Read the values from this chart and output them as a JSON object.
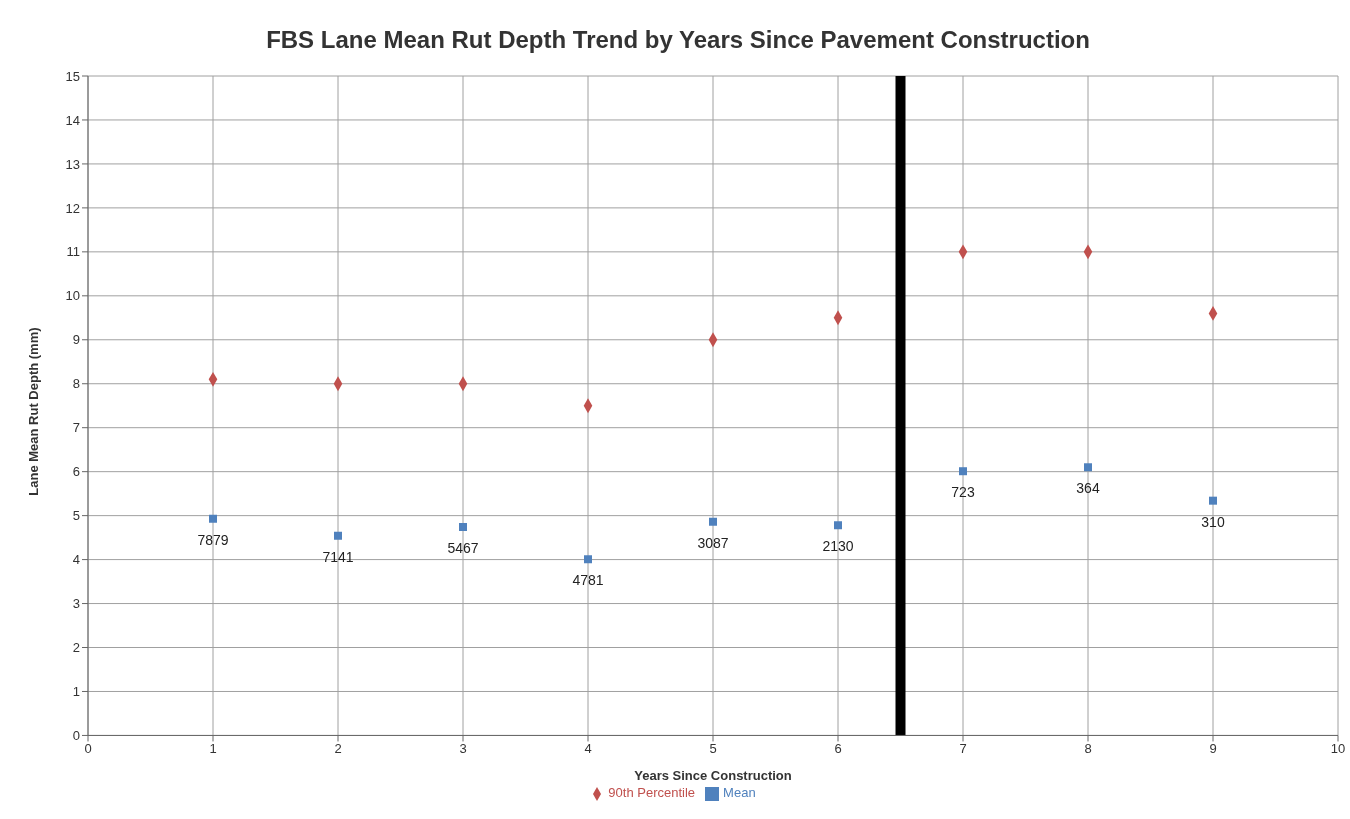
{
  "chart_data": {
    "type": "scatter",
    "title": "FBS Lane Mean Rut Depth Trend by Years Since Pavement Construction",
    "xlabel": "Years Since Construction",
    "ylabel": "Lane Mean Rut Depth (mm)",
    "x": [
      1,
      2,
      3,
      4,
      5,
      6,
      7,
      8,
      9
    ],
    "series": [
      {
        "name": "Mean",
        "color": "#4f81bd",
        "marker": "square",
        "values": [
          4.93,
          4.54,
          4.74,
          4.01,
          4.86,
          4.78,
          6.01,
          6.1,
          5.34
        ]
      },
      {
        "name": "90th Percentile",
        "color": "#c0504d",
        "marker": "diamond",
        "values": [
          8.1,
          8.0,
          8.0,
          7.5,
          9.0,
          9.5,
          11.0,
          11.0,
          9.6
        ]
      }
    ],
    "annotations": [
      {
        "text": "7879",
        "x": 1,
        "y": 4.93
      },
      {
        "text": "7141",
        "x": 2,
        "y": 4.54
      },
      {
        "text": "5467",
        "x": 3,
        "y": 4.74
      },
      {
        "text": "4781",
        "x": 4,
        "y": 4.01
      },
      {
        "text": "3087",
        "x": 5,
        "y": 4.86
      },
      {
        "text": "2130",
        "x": 6,
        "y": 4.78
      },
      {
        "text": "723",
        "x": 7,
        "y": 6.01
      },
      {
        "text": "364",
        "x": 8,
        "y": 6.1
      },
      {
        "text": "310",
        "x": 9,
        "y": 5.34
      }
    ],
    "ref_lines": [
      {
        "axis": "x",
        "value": 6.5,
        "color": "#000000"
      }
    ],
    "xlim": [
      0,
      10
    ],
    "xticks": [
      0,
      1,
      2,
      3,
      4,
      5,
      6,
      7,
      8,
      9,
      10
    ],
    "ylim": [
      0,
      15
    ],
    "yticks": [
      0,
      1,
      2,
      3,
      4,
      5,
      6,
      7,
      8,
      9,
      10,
      11,
      12,
      13,
      14,
      15
    ],
    "grid": true,
    "legend": "bottom"
  }
}
